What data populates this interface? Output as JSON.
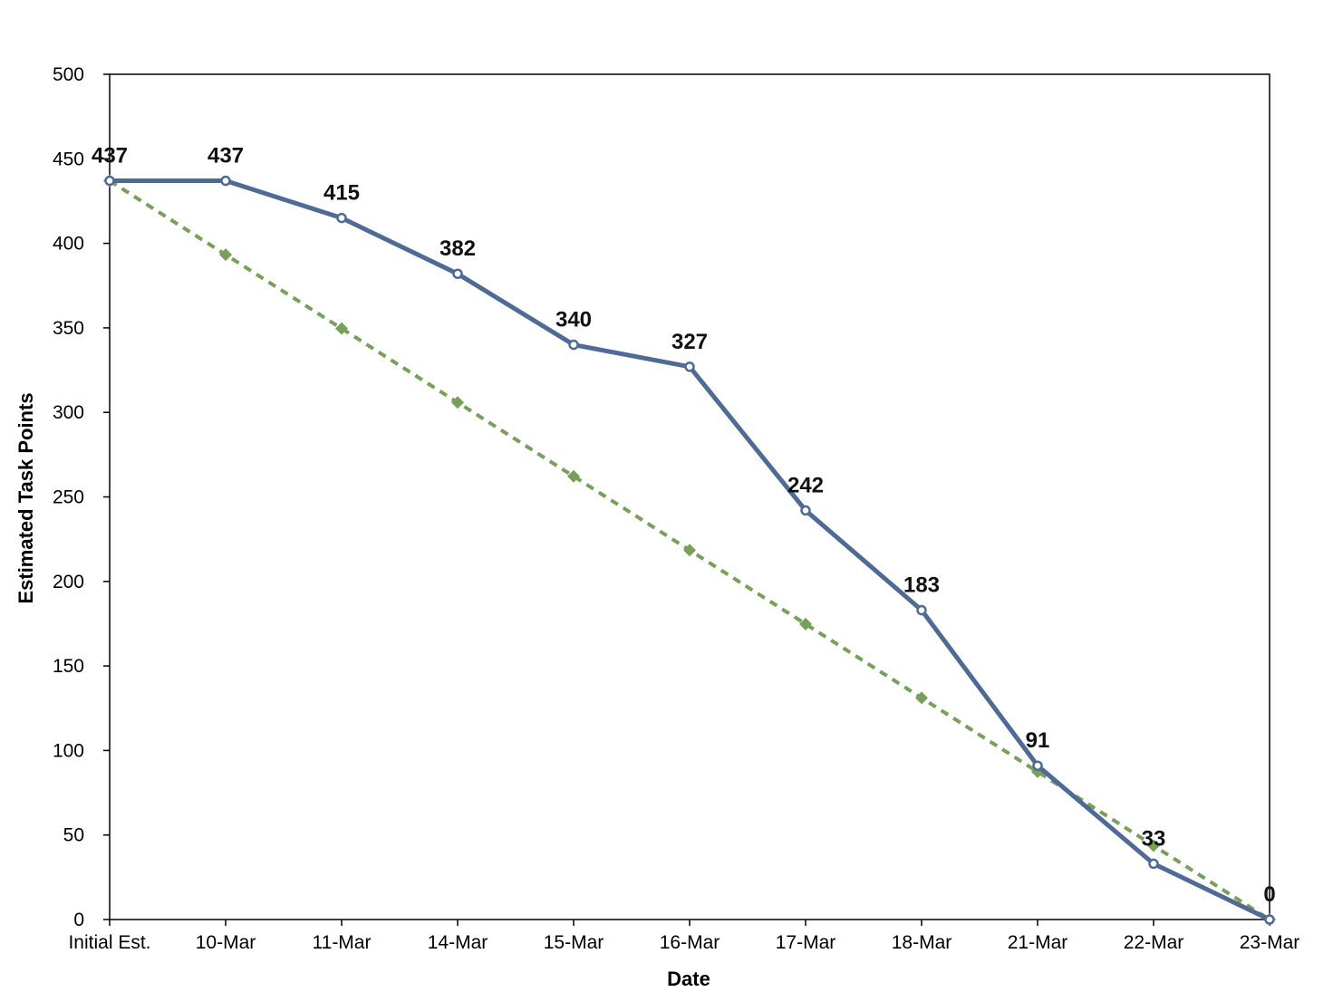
{
  "chart_data": {
    "type": "line",
    "title": "",
    "xlabel": "Date",
    "ylabel": "Estimated Task Points",
    "categories": [
      "Initial Est.",
      "10-Mar",
      "11-Mar",
      "14-Mar",
      "15-Mar",
      "16-Mar",
      "17-Mar",
      "18-Mar",
      "21-Mar",
      "22-Mar",
      "23-Mar"
    ],
    "ylim": [
      0,
      500
    ],
    "yticks": [
      0,
      50,
      100,
      150,
      200,
      250,
      300,
      350,
      400,
      450,
      500
    ],
    "grid": false,
    "legend": "none",
    "series": [
      {
        "values": [
          437,
          437,
          415,
          382,
          340,
          327,
          242,
          183,
          91,
          33,
          0
        ],
        "data_labels": [
          "437",
          "437",
          "415",
          "382",
          "340",
          "327",
          "242",
          "183",
          "91",
          "33",
          "0"
        ],
        "color": "#4f6b95",
        "marker": "circle",
        "style": "solid"
      },
      {
        "values": [
          437,
          393.3,
          349.6,
          305.9,
          262.2,
          218.5,
          174.8,
          131.1,
          87.4,
          43.7,
          0
        ],
        "color": "#79a05a",
        "marker": "diamond",
        "style": "dashed"
      }
    ]
  }
}
